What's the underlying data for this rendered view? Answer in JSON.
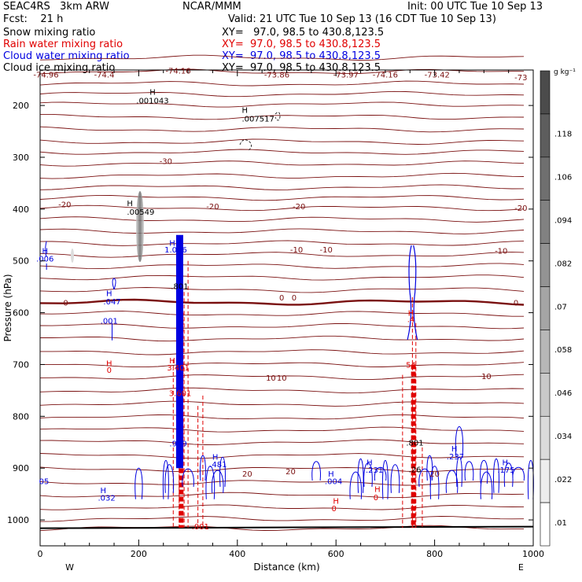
{
  "header": {
    "model": "SEAC4RS   3km ARW",
    "org": "NCAR/MMM",
    "init": "Init: 00 UTC Tue 10 Sep 13",
    "fcst": "Fcst:    21 h",
    "valid": "Valid: 21 UTC Tue 10 Sep 13 (16 CDT Tue 10 Sep 13)",
    "fields": [
      {
        "label": "Snow mixing ratio",
        "xy": "XY=   97.0, 98.5 to 430.8,123.5",
        "color": "#000000"
      },
      {
        "label": "Rain water mixing ratio",
        "xy": "XY=  97.0, 98.5 to 430.8,123.5",
        "color": "#e00000"
      },
      {
        "label": "Cloud water mixing ratio",
        "xy": "XY=  97.0, 98.5 to 430.8,123.5",
        "color": "#0000e0"
      },
      {
        "label": "Cloud ice mixing ratio",
        "xy": "XY=  97.0, 98.5 to 430.8,123.5",
        "color": "#000000"
      }
    ]
  },
  "chart_data": {
    "type": "contour",
    "xlabel": "Distance (km)",
    "ylabel": "Pressure (hPa)",
    "xlim": [
      0,
      1000
    ],
    "ylim": [
      1050,
      130
    ],
    "x_ticks": [
      0,
      200,
      400,
      600,
      800,
      1000
    ],
    "y_ticks": [
      200,
      300,
      400,
      500,
      600,
      700,
      800,
      900,
      1000
    ],
    "x_tick_labels": [
      "0",
      "200",
      "400",
      "600",
      "800",
      "1000"
    ],
    "y_tick_labels": [
      "200",
      "300",
      "400",
      "500",
      "600",
      "700",
      "800",
      "900",
      "1000"
    ],
    "west_label": "W",
    "east_label": "E",
    "colorbar": {
      "unit": "g kg⁻¹",
      "ticks": [
        ".01",
        ".022",
        ".034",
        ".046",
        ".058",
        ".07",
        ".082",
        ".094",
        ".106",
        ".118"
      ]
    },
    "top_temps": [
      {
        "x": 12,
        "p": 140,
        "t": "-74.96"
      },
      {
        "x": 130,
        "p": 140,
        "t": "-74.4"
      },
      {
        "x": 280,
        "p": 132,
        "t": "-74.16"
      },
      {
        "x": 480,
        "p": 140,
        "t": "-73.86"
      },
      {
        "x": 620,
        "p": 140,
        "t": "-73.97"
      },
      {
        "x": 700,
        "p": 140,
        "t": "-74.16"
      },
      {
        "x": 805,
        "p": 140,
        "t": "-73.42"
      },
      {
        "x": 975,
        "p": 145,
        "t": "-73"
      }
    ],
    "isotherm_labels": [
      {
        "x": 255,
        "p": 307,
        "t": "-30"
      },
      {
        "x": 50,
        "p": 390,
        "t": "-20"
      },
      {
        "x": 350,
        "p": 394,
        "t": "-20"
      },
      {
        "x": 525,
        "p": 394,
        "t": "-20"
      },
      {
        "x": 975,
        "p": 397,
        "t": "-20"
      },
      {
        "x": 520,
        "p": 478,
        "t": "-10"
      },
      {
        "x": 580,
        "p": 478,
        "t": "-10"
      },
      {
        "x": 935,
        "p": 480,
        "t": "-10"
      },
      {
        "x": 52,
        "p": 580,
        "t": "0"
      },
      {
        "x": 490,
        "p": 570,
        "t": "0"
      },
      {
        "x": 515,
        "p": 570,
        "t": "0"
      },
      {
        "x": 965,
        "p": 580,
        "t": "0"
      },
      {
        "x": 468,
        "p": 725,
        "t": "10"
      },
      {
        "x": 490,
        "p": 725,
        "t": "10"
      },
      {
        "x": 905,
        "p": 722,
        "t": "10"
      },
      {
        "x": 420,
        "p": 910,
        "t": "20"
      },
      {
        "x": 508,
        "p": 906,
        "t": "20"
      },
      {
        "x": 800,
        "p": 910,
        "t": "20"
      }
    ],
    "field_labels": [
      {
        "x": 228,
        "p": 190,
        "t": ".001043",
        "color": "#000000"
      },
      {
        "x": 228,
        "p": 173,
        "t": "H",
        "color": "#000000"
      },
      {
        "x": 442,
        "p": 225,
        "t": ".007517",
        "color": "#000000"
      },
      {
        "x": 415,
        "p": 208,
        "t": "H",
        "color": "#000000"
      },
      {
        "x": 204,
        "p": 405,
        "t": ".00549",
        "color": "#000000"
      },
      {
        "x": 182,
        "p": 388,
        "t": "H",
        "color": "#000000"
      },
      {
        "x": 10,
        "p": 495,
        "t": ".006",
        "color": "#0000e0"
      },
      {
        "x": 10,
        "p": 480,
        "t": "H",
        "color": "#0000e0"
      },
      {
        "x": 146,
        "p": 578,
        "t": ".047",
        "color": "#0000e0"
      },
      {
        "x": 140,
        "p": 562,
        "t": "H",
        "color": "#0000e0"
      },
      {
        "x": 140,
        "p": 615,
        "t": ".001",
        "color": "#0000e0"
      },
      {
        "x": 140,
        "p": 697,
        "t": "H",
        "color": "#e00000"
      },
      {
        "x": 140,
        "p": 710,
        "t": "0",
        "color": "#e00000"
      },
      {
        "x": 268,
        "p": 465,
        "t": "H",
        "color": "#0000e0"
      },
      {
        "x": 275,
        "p": 478,
        "t": "1.066",
        "color": "#0000e0"
      },
      {
        "x": 283,
        "p": 548,
        "t": ".801",
        "color": "#000000"
      },
      {
        "x": 268,
        "p": 692,
        "t": "H",
        "color": "#e00000"
      },
      {
        "x": 280,
        "p": 705,
        "t": "3.401",
        "color": "#e00000"
      },
      {
        "x": 284,
        "p": 755,
        "t": "3.601",
        "color": "#e00000"
      },
      {
        "x": 280,
        "p": 852,
        "t": ".939",
        "color": "#0000e0"
      },
      {
        "x": 361,
        "p": 892,
        "t": ".481",
        "color": "#0000e0"
      },
      {
        "x": 355,
        "p": 878,
        "t": "H",
        "color": "#0000e0"
      },
      {
        "x": 325,
        "p": 1012,
        "t": ".001",
        "color": "#e00000"
      },
      {
        "x": 135,
        "p": 957,
        "t": ".032",
        "color": "#0000e0"
      },
      {
        "x": 128,
        "p": 942,
        "t": "H",
        "color": "#0000e0"
      },
      {
        "x": 8,
        "p": 925,
        "t": "05",
        "color": "#0000e0"
      },
      {
        "x": 595,
        "p": 925,
        "t": ".004",
        "color": "#0000e0"
      },
      {
        "x": 590,
        "p": 910,
        "t": "H",
        "color": "#0000e0"
      },
      {
        "x": 600,
        "p": 963,
        "t": "H",
        "color": "#e00000"
      },
      {
        "x": 596,
        "p": 977,
        "t": "0",
        "color": "#e00000"
      },
      {
        "x": 678,
        "p": 903,
        "t": ".231",
        "color": "#0000e0"
      },
      {
        "x": 668,
        "p": 888,
        "t": "H",
        "color": "#0000e0"
      },
      {
        "x": 684,
        "p": 940,
        "t": "H",
        "color": "#e00000"
      },
      {
        "x": 681,
        "p": 956,
        "t": "0",
        "color": "#e00000"
      },
      {
        "x": 752,
        "p": 600,
        "t": "H",
        "color": "#e00000"
      },
      {
        "x": 752,
        "p": 612,
        "t": ".4",
        "color": "#e00000"
      },
      {
        "x": 752,
        "p": 700,
        "t": "54",
        "color": "#e00000"
      },
      {
        "x": 760,
        "p": 850,
        "t": ".801",
        "color": "#000000"
      },
      {
        "x": 760,
        "p": 902,
        "t": ".26",
        "color": "#000000"
      },
      {
        "x": 842,
        "p": 877,
        "t": ".237",
        "color": "#0000e0"
      },
      {
        "x": 840,
        "p": 862,
        "t": "H",
        "color": "#0000e0"
      },
      {
        "x": 945,
        "p": 903,
        "t": ".175",
        "color": "#0000e0"
      },
      {
        "x": 943,
        "p": 888,
        "t": "H",
        "color": "#0000e0"
      }
    ]
  }
}
